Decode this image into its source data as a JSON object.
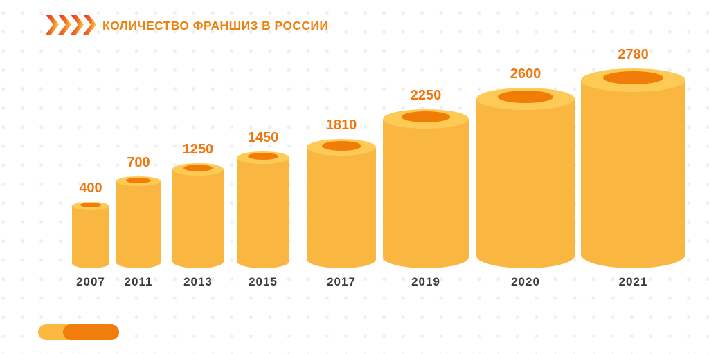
{
  "title": "КОЛИЧЕСТВО ФРАНШИЗ В РОССИИ",
  "header": {
    "chevron_count": 4
  },
  "chart_data": {
    "type": "bar",
    "variant": "3d-cylinder-infographic",
    "title": "КОЛИЧЕСТВО ФРАНШИЗ В РОССИИ",
    "categories": [
      "2007",
      "2011",
      "2013",
      "2015",
      "2017",
      "2019",
      "2020",
      "2021"
    ],
    "values": [
      400,
      700,
      1250,
      1450,
      1810,
      2250,
      2600,
      2780
    ],
    "xlabel": "",
    "ylabel": "",
    "legend_position": "none",
    "grid": "dotted-background",
    "value_labels_position": "above-bars"
  },
  "colors": {
    "cylinder_body": "#F9B640",
    "cylinder_rim": "#FDCB55",
    "cylinder_hole": "#F07D08",
    "value_label": "#F1760C",
    "title": "#EF820D",
    "year_label": "#3B3B3B",
    "chevron_red": "#E8392C",
    "chevron_yellow": "#FFC93B",
    "pill_light": "#FBB843",
    "pill_dark": "#F07D0C",
    "background_dot": "#EFEFEF"
  }
}
